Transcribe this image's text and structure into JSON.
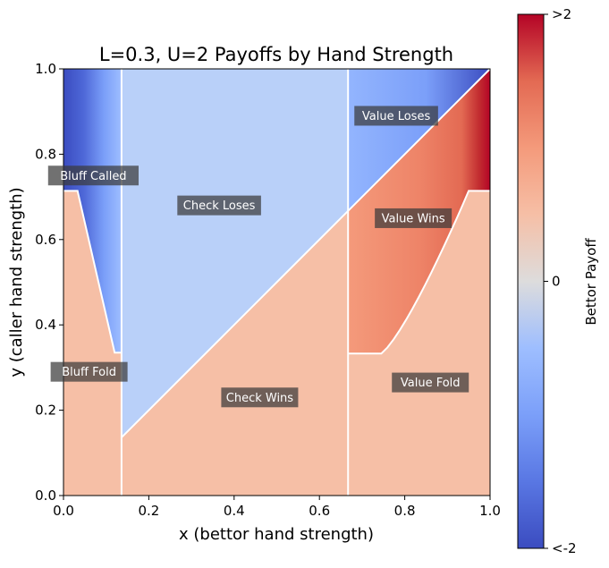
{
  "chart_data": {
    "type": "heatmap",
    "title": "L=0.3, U=2 Payoffs by Hand Strength",
    "xlabel": "x (bettor hand strength)",
    "ylabel": "y (caller hand strength)",
    "xlim": [
      0,
      1
    ],
    "ylim": [
      0,
      1
    ],
    "x_ticks": [
      "0.0",
      "0.2",
      "0.4",
      "0.6",
      "0.8",
      "1.0"
    ],
    "y_ticks": [
      "0.0",
      "0.2",
      "0.4",
      "0.6",
      "0.8",
      "1.0"
    ],
    "parameters": {
      "L": 0.3,
      "U": 2
    },
    "thresholds": {
      "x_bluff": 0.136,
      "x_value": 0.667,
      "y_bluff_call": 0.714,
      "y_value_call": 0.333
    },
    "colorbar": {
      "label": "Bettor Payoff",
      "colormap": "coolwarm",
      "ticks": [
        {
          "value": 2,
          "label": ">2"
        },
        {
          "value": 0,
          "label": "0"
        },
        {
          "value": -2,
          "label": "<-2"
        }
      ],
      "range": [
        -2,
        2
      ]
    },
    "regions": [
      {
        "name": "Bluff Called",
        "payoff": "-(1+U) at calls above threshold",
        "label_at": [
          0.07,
          0.75
        ]
      },
      {
        "name": "Bluff Fold",
        "payoff": 1,
        "label_at": [
          0.06,
          0.29
        ]
      },
      {
        "name": "Check Loses",
        "payoff": -1,
        "label_at": [
          0.365,
          0.68
        ]
      },
      {
        "name": "Check Wins",
        "payoff": 1,
        "label_at": [
          0.46,
          0.23
        ]
      },
      {
        "name": "Value Loses",
        "payoff": "-(1+U)",
        "label_at": [
          0.78,
          0.89
        ]
      },
      {
        "name": "Value Wins",
        "payoff": "1+U",
        "label_at": [
          0.82,
          0.65
        ]
      },
      {
        "name": "Value Fold",
        "payoff": 1,
        "label_at": [
          0.86,
          0.265
        ]
      }
    ]
  }
}
